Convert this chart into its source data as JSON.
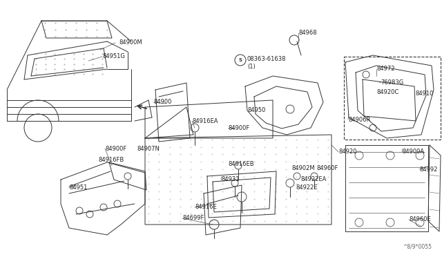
{
  "bg_color": "#ffffff",
  "line_color": "#333333",
  "label_color": "#222222",
  "diagram_code": "^8/9*0055",
  "label_fs": 6.0,
  "lw": 0.7,
  "labels": [
    [
      "84900M",
      172,
      62
    ],
    [
      "84951G",
      148,
      82
    ],
    [
      "84900",
      222,
      148
    ],
    [
      "84916EA",
      278,
      175
    ],
    [
      "84900F",
      330,
      185
    ],
    [
      "84950",
      358,
      160
    ],
    [
      "84968",
      432,
      48
    ],
    [
      "08363-61638",
      358,
      85
    ],
    [
      "(1)",
      358,
      97
    ],
    [
      "84972",
      545,
      100
    ],
    [
      "76983G",
      551,
      120
    ],
    [
      "84920C",
      545,
      133
    ],
    [
      "84910",
      601,
      135
    ],
    [
      "84906R",
      504,
      173
    ],
    [
      "84916EB",
      330,
      238
    ],
    [
      "84920",
      490,
      220
    ],
    [
      "84900F",
      152,
      215
    ],
    [
      "84907N",
      198,
      215
    ],
    [
      "84916FB",
      142,
      232
    ],
    [
      "84951",
      100,
      272
    ],
    [
      "84931",
      320,
      260
    ],
    [
      "84902M",
      422,
      243
    ],
    [
      "84960F",
      458,
      243
    ],
    [
      "84922EA",
      435,
      260
    ],
    [
      "84922E",
      428,
      272
    ],
    [
      "84900A",
      582,
      220
    ],
    [
      "84992",
      607,
      245
    ],
    [
      "84960E",
      592,
      318
    ],
    [
      "84916E",
      282,
      300
    ],
    [
      "84699F",
      264,
      316
    ]
  ]
}
